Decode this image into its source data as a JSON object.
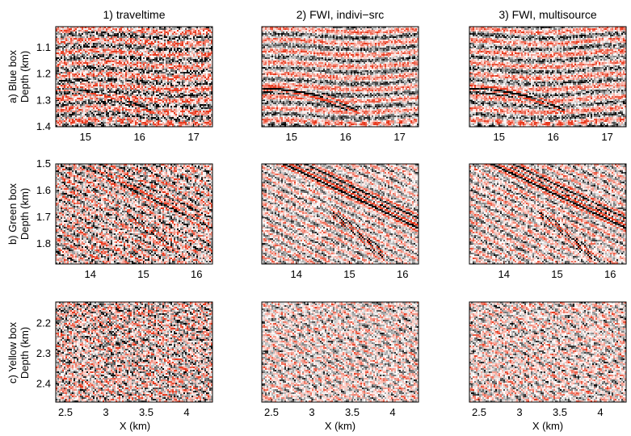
{
  "figure": {
    "columns": [
      "1) traveltime",
      "2) FWI, indivi−src",
      "3) FWI, multisource"
    ],
    "rows": [
      {
        "label_line1": "a) Blue box",
        "label_line2": "Depth (km)",
        "x_ticks": [
          "15",
          "16",
          "17"
        ],
        "x_tick_values": [
          15,
          16,
          17
        ],
        "x_range": [
          14.45,
          17.35
        ],
        "y_ticks": [
          "1.1",
          "1.2",
          "1.3",
          "1.4"
        ],
        "y_tick_values": [
          1.1,
          1.2,
          1.3,
          1.4
        ],
        "y_range": [
          1.02,
          1.4
        ],
        "show_xlabel": false
      },
      {
        "label_line1": "b) Green box",
        "label_line2": "Depth (km)",
        "x_ticks": [
          "14",
          "15",
          "16"
        ],
        "x_tick_values": [
          14,
          15,
          16
        ],
        "x_range": [
          13.35,
          16.3
        ],
        "y_ticks": [
          "1.5",
          "1.6",
          "1.7",
          "1.8"
        ],
        "y_tick_values": [
          1.5,
          1.6,
          1.7,
          1.8
        ],
        "y_range": [
          1.5,
          1.875
        ],
        "show_xlabel": false
      },
      {
        "label_line1": "c) Yellow box",
        "label_line2": "Depth (km)",
        "x_ticks": [
          "2.5",
          "3",
          "3.5",
          "4"
        ],
        "x_tick_values": [
          2.5,
          3,
          3.5,
          4
        ],
        "x_range": [
          2.38,
          4.32
        ],
        "y_ticks": [
          "2.2",
          "2.3",
          "2.4"
        ],
        "y_tick_values": [
          2.2,
          2.3,
          2.4
        ],
        "y_range": [
          2.13,
          2.46
        ],
        "show_xlabel": true
      }
    ],
    "xlabel": "X (km)",
    "colormap": {
      "negative": "#000000",
      "zero": "#ffffff",
      "positive": "#e8381c"
    }
  }
}
